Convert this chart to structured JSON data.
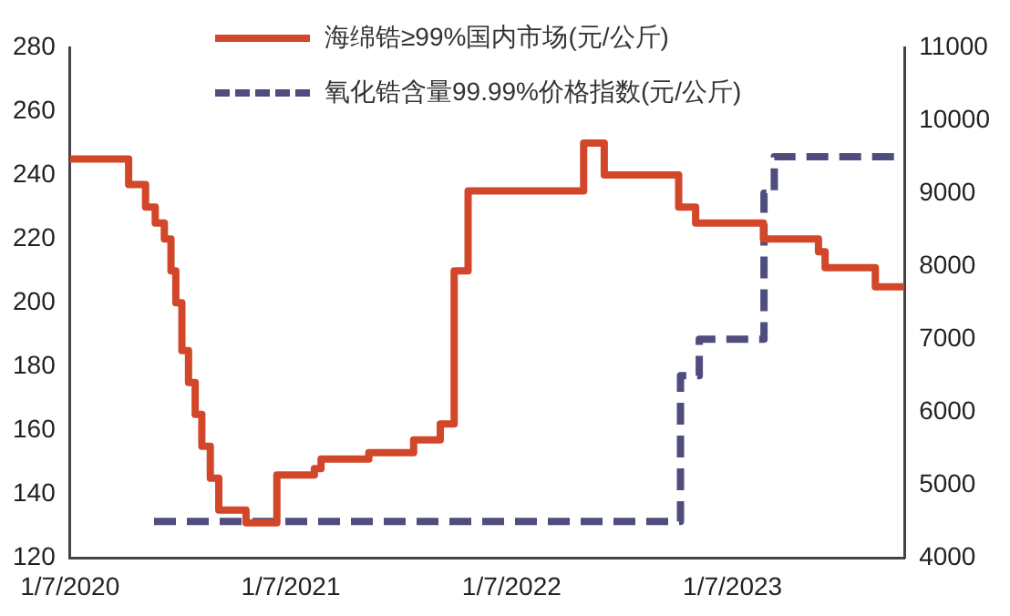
{
  "chart_data": {
    "type": "step",
    "xlim": [
      "2020-07-01",
      "2024-04-10"
    ],
    "xticks": [
      {
        "value": "2020-07-01",
        "label": "1/7/2020"
      },
      {
        "value": "2021-07-01",
        "label": "1/7/2021"
      },
      {
        "value": "2022-07-01",
        "label": "1/7/2022"
      },
      {
        "value": "2023-07-01",
        "label": "1/7/2023"
      }
    ],
    "ylim": [
      120,
      280
    ],
    "yticks": [
      120,
      140,
      160,
      180,
      200,
      220,
      240,
      260,
      280
    ],
    "y2lim": [
      4000,
      11000
    ],
    "y2ticks": [
      4000,
      5000,
      6000,
      7000,
      8000,
      9000,
      10000,
      11000
    ],
    "legend": "top",
    "grid": false,
    "series": [
      {
        "name": "海绵锆≥99%国内市场(元/公斤)",
        "color": "#d2462a",
        "line_style": "solid",
        "x": [
          "2020-07-01",
          "2020-10-06",
          "2020-11-03",
          "2020-11-19",
          "2020-12-04",
          "2020-12-15",
          "2020-12-23",
          "2021-01-02",
          "2021-01-13",
          "2021-01-24",
          "2021-02-04",
          "2021-02-18",
          "2021-03-04",
          "2021-04-18",
          "2021-06-08",
          "2021-08-09",
          "2021-08-20",
          "2021-11-07",
          "2022-01-20",
          "2022-03-05",
          "2022-03-28",
          "2022-04-20",
          "2022-10-28",
          "2022-12-01",
          "2023-04-03",
          "2023-05-01",
          "2023-08-21",
          "2023-11-20",
          "2023-12-01",
          "2024-02-22",
          "2024-04-10"
        ],
        "values": [
          245,
          237,
          230,
          225,
          220,
          210,
          200,
          185,
          175,
          165,
          155,
          145,
          135,
          131,
          146,
          148,
          151,
          153,
          157,
          162,
          210,
          235,
          250,
          240,
          230,
          225,
          220,
          216,
          211,
          205,
          205
        ]
      },
      {
        "name": "氧化锆含量99.99%价格指数(元/公斤)",
        "color": "#4f4d7e",
        "line_style": "dashed",
        "axis": "y2",
        "x": [
          "2020-11-17",
          "2023-04-06",
          "2023-05-07",
          "2023-08-22",
          "2023-09-08",
          "2024-04-10"
        ],
        "values": [
          4500,
          6500,
          7000,
          9000,
          9500,
          9500
        ]
      }
    ]
  }
}
